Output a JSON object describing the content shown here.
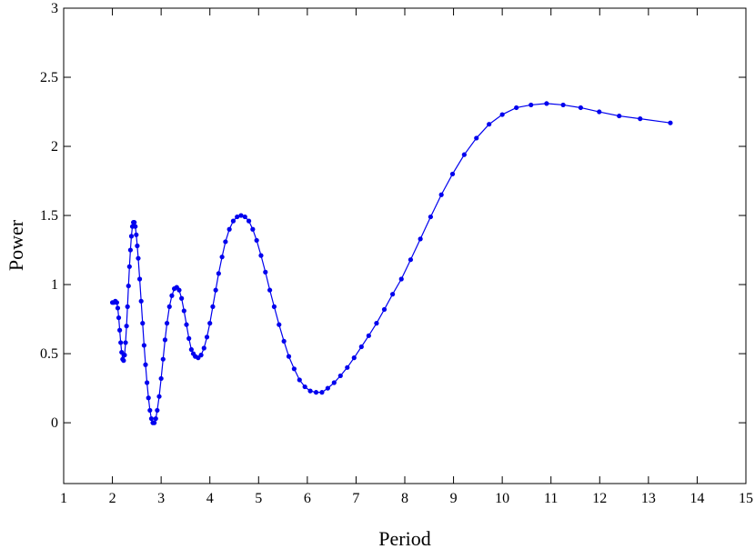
{
  "chart_data": {
    "type": "line",
    "x_label": "Period",
    "y_label": "Power",
    "xlim": [
      1,
      15
    ],
    "ylim": [
      -0.44,
      3
    ],
    "xticks": [
      1,
      2,
      3,
      4,
      5,
      6,
      7,
      8,
      9,
      10,
      11,
      12,
      13,
      14,
      15
    ],
    "yticks": [
      0,
      0.5,
      1,
      1.5,
      2,
      2.5,
      3
    ],
    "grid": false,
    "series": [
      {
        "color": "#0000ee",
        "x": [
          2.0,
          2.03,
          2.06,
          2.09,
          2.11,
          2.13,
          2.15,
          2.17,
          2.19,
          2.21,
          2.23,
          2.25,
          2.27,
          2.29,
          2.31,
          2.33,
          2.35,
          2.37,
          2.39,
          2.41,
          2.43,
          2.45,
          2.47,
          2.49,
          2.51,
          2.53,
          2.56,
          2.59,
          2.62,
          2.65,
          2.68,
          2.71,
          2.74,
          2.77,
          2.8,
          2.83,
          2.86,
          2.89,
          2.92,
          2.96,
          3.0,
          3.04,
          3.08,
          3.12,
          3.17,
          3.22,
          3.27,
          3.32,
          3.37,
          3.42,
          3.47,
          3.52,
          3.57,
          3.62,
          3.66,
          3.7,
          3.76,
          3.82,
          3.88,
          3.94,
          4.0,
          4.06,
          4.12,
          4.18,
          4.25,
          4.32,
          4.4,
          4.48,
          4.56,
          4.64,
          4.72,
          4.8,
          4.88,
          4.96,
          5.05,
          5.14,
          5.23,
          5.32,
          5.42,
          5.52,
          5.62,
          5.73,
          5.84,
          5.95,
          6.06,
          6.18,
          6.3,
          6.42,
          6.55,
          6.68,
          6.82,
          6.96,
          7.11,
          7.26,
          7.42,
          7.58,
          7.75,
          7.93,
          8.12,
          8.32,
          8.53,
          8.75,
          8.98,
          9.22,
          9.47,
          9.73,
          10.0,
          10.29,
          10.59,
          10.91,
          11.25,
          11.61,
          11.99,
          12.4,
          12.83,
          13.45
        ],
        "values": [
          0.87,
          0.87,
          0.88,
          0.87,
          0.83,
          0.76,
          0.67,
          0.58,
          0.51,
          0.46,
          0.45,
          0.49,
          0.58,
          0.7,
          0.84,
          0.99,
          1.13,
          1.25,
          1.35,
          1.42,
          1.45,
          1.45,
          1.42,
          1.36,
          1.28,
          1.19,
          1.04,
          0.88,
          0.72,
          0.56,
          0.42,
          0.29,
          0.18,
          0.09,
          0.03,
          0.0,
          0.0,
          0.03,
          0.09,
          0.19,
          0.32,
          0.46,
          0.6,
          0.72,
          0.84,
          0.92,
          0.97,
          0.98,
          0.96,
          0.9,
          0.81,
          0.71,
          0.61,
          0.53,
          0.5,
          0.48,
          0.47,
          0.49,
          0.54,
          0.62,
          0.72,
          0.84,
          0.96,
          1.08,
          1.2,
          1.31,
          1.4,
          1.46,
          1.49,
          1.5,
          1.49,
          1.46,
          1.4,
          1.32,
          1.21,
          1.09,
          0.96,
          0.84,
          0.71,
          0.59,
          0.48,
          0.39,
          0.31,
          0.26,
          0.23,
          0.22,
          0.22,
          0.25,
          0.29,
          0.34,
          0.4,
          0.47,
          0.55,
          0.63,
          0.72,
          0.82,
          0.93,
          1.04,
          1.18,
          1.33,
          1.49,
          1.65,
          1.8,
          1.94,
          2.06,
          2.16,
          2.23,
          2.28,
          2.3,
          2.31,
          2.3,
          2.28,
          2.25,
          2.22,
          2.2,
          2.17
        ]
      }
    ]
  }
}
